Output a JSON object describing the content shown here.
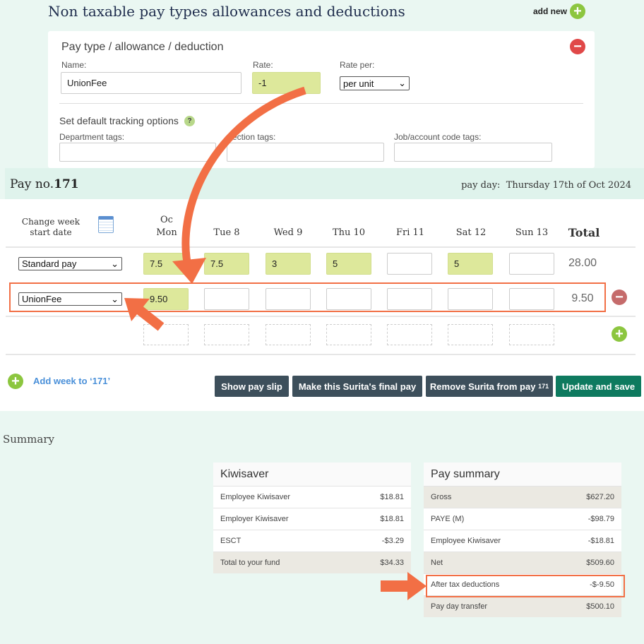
{
  "top": {
    "title": "Non taxable pay types allowances and deductions",
    "add_new": "add new",
    "card": {
      "heading": "Pay type / allowance / deduction",
      "name_label": "Name:",
      "name_value": "UnionFee",
      "rate_label": "Rate:",
      "rate_value": "-1",
      "rate_per_label": "Rate per:",
      "rate_per_value": "per unit",
      "tracking_heading": "Set default tracking options",
      "help": "?",
      "department_label": "Department tags:",
      "section_label": "Section tags:",
      "job_label": "Job/account code tags:"
    }
  },
  "pay": {
    "title_prefix": "Pay no.",
    "number": "171",
    "pay_day_label": "pay day:",
    "pay_day_value": "Thursday 17th of Oct 2024",
    "change_week": "Change week",
    "start_date": "start date",
    "days": [
      {
        "top": "Oc",
        "label": "Mon"
      },
      {
        "top": "",
        "label": "Tue 8"
      },
      {
        "top": "",
        "label": "Wed 9"
      },
      {
        "top": "",
        "label": "Thu 10"
      },
      {
        "top": "",
        "label": "Fri 11"
      },
      {
        "top": "",
        "label": "Sat 12"
      },
      {
        "top": "",
        "label": "Sun 13"
      }
    ],
    "total_label": "Total",
    "rows": [
      {
        "type": "Standard pay",
        "values": [
          "7.5",
          "7.5",
          "3",
          "5",
          "",
          "5",
          ""
        ],
        "total": "28.00"
      },
      {
        "type": "UnionFee",
        "values": [
          "9.50",
          "",
          "",
          "",
          "",
          "",
          ""
        ],
        "total": "9.50"
      }
    ],
    "add_week": "Add week to ‘171’",
    "buttons": {
      "show_slip": "Show pay slip",
      "final_pay": "Make this Surita's final pay",
      "remove": "Remove Surita from pay",
      "remove_num": "171",
      "update": "Update and save"
    }
  },
  "summary": {
    "label": "Summary",
    "kiwisaver": {
      "title": "Kiwisaver",
      "rows": [
        {
          "label": "Employee Kiwisaver",
          "value": "$18.81"
        },
        {
          "label": "Employer Kiwisaver",
          "value": "$18.81"
        },
        {
          "label": "ESCT",
          "value": "-$3.29"
        },
        {
          "label": "Total to your fund",
          "value": "$34.33"
        }
      ]
    },
    "pay_summary": {
      "title": "Pay summary",
      "rows": [
        {
          "label": "Gross",
          "value": "$627.20"
        },
        {
          "label": "PAYE (M)",
          "value": "-$98.79"
        },
        {
          "label": "Employee Kiwisaver",
          "value": "-$18.81"
        },
        {
          "label": "Net",
          "value": "$509.60"
        },
        {
          "label": "After tax deductions",
          "value": "-$-9.50"
        },
        {
          "label": "Pay day transfer",
          "value": "$500.10"
        }
      ]
    }
  },
  "colors": {
    "accent_orange": "#f26f45",
    "input_green": "#dde89b",
    "button_dark": "#3d4f5b",
    "button_green": "#0e7a5f",
    "plus_green": "#8cc63f"
  }
}
